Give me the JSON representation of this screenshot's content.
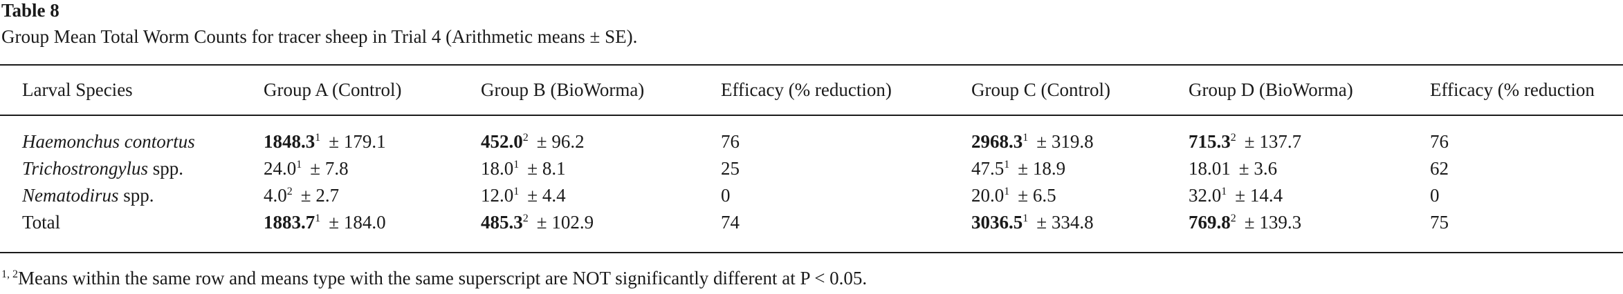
{
  "table": {
    "label": "Table 8",
    "caption": "Group Mean Total Worm Counts for tracer sheep in Trial 4 (Arithmetic means ± SE).",
    "headers": [
      "Larval Species",
      "Group A (Control)",
      "Group B (BioWorma)",
      "Efficacy (% reduction)",
      "Group C (Control)",
      "Group D (BioWorma)",
      "Efficacy (% reduction"
    ],
    "rows": [
      {
        "species_italic": "Haemonchus contortus",
        "species_suffix": "",
        "a": {
          "value": "1848.3",
          "sup": "1",
          "se": "± 179.1",
          "bold": true
        },
        "b": {
          "value": "452.0",
          "sup": "2",
          "se": "± 96.2",
          "bold": true
        },
        "eff1": "76",
        "c": {
          "value": "2968.3",
          "sup": "1",
          "se": "± 319.8",
          "bold": true
        },
        "d": {
          "value": "715.3",
          "sup": "2",
          "se": "± 137.7",
          "bold": true
        },
        "eff2": "76"
      },
      {
        "species_italic": "Trichostrongylus",
        "species_suffix": " spp.",
        "a": {
          "value": "24.0",
          "sup": "1",
          "se": "± 7.8",
          "bold": false
        },
        "b": {
          "value": "18.0",
          "sup": "1",
          "se": "± 8.1",
          "bold": false
        },
        "eff1": "25",
        "c": {
          "value": "47.5",
          "sup": "1",
          "se": "± 18.9",
          "bold": false
        },
        "d": {
          "value": "18.01",
          "sup": "",
          "se": "± 3.6",
          "bold": false
        },
        "eff2": "62"
      },
      {
        "species_italic": "Nematodirus",
        "species_suffix": " spp.",
        "a": {
          "value": "4.0",
          "sup": "2",
          "se": "± 2.7",
          "bold": false
        },
        "b": {
          "value": "12.0",
          "sup": "1",
          "se": "± 4.4",
          "bold": false
        },
        "eff1": "0",
        "c": {
          "value": "20.0",
          "sup": "1",
          "se": "± 6.5",
          "bold": false
        },
        "d": {
          "value": "32.0",
          "sup": "1",
          "se": "± 14.4",
          "bold": false
        },
        "eff2": "0"
      },
      {
        "species_italic": "",
        "species_suffix": "Total",
        "a": {
          "value": "1883.7",
          "sup": "1",
          "se": "± 184.0",
          "bold": true
        },
        "b": {
          "value": "485.3",
          "sup": "2",
          "se": "± 102.9",
          "bold": true
        },
        "eff1": "74",
        "c": {
          "value": "3036.5",
          "sup": "1",
          "se": "± 334.8",
          "bold": true
        },
        "d": {
          "value": "769.8",
          "sup": "2",
          "se": "± 139.3",
          "bold": true
        },
        "eff2": "75"
      }
    ],
    "footnote": {
      "sup": "1, 2",
      "text": "Means within the same row and means type with the same superscript are NOT significantly different at P < 0.05."
    }
  }
}
